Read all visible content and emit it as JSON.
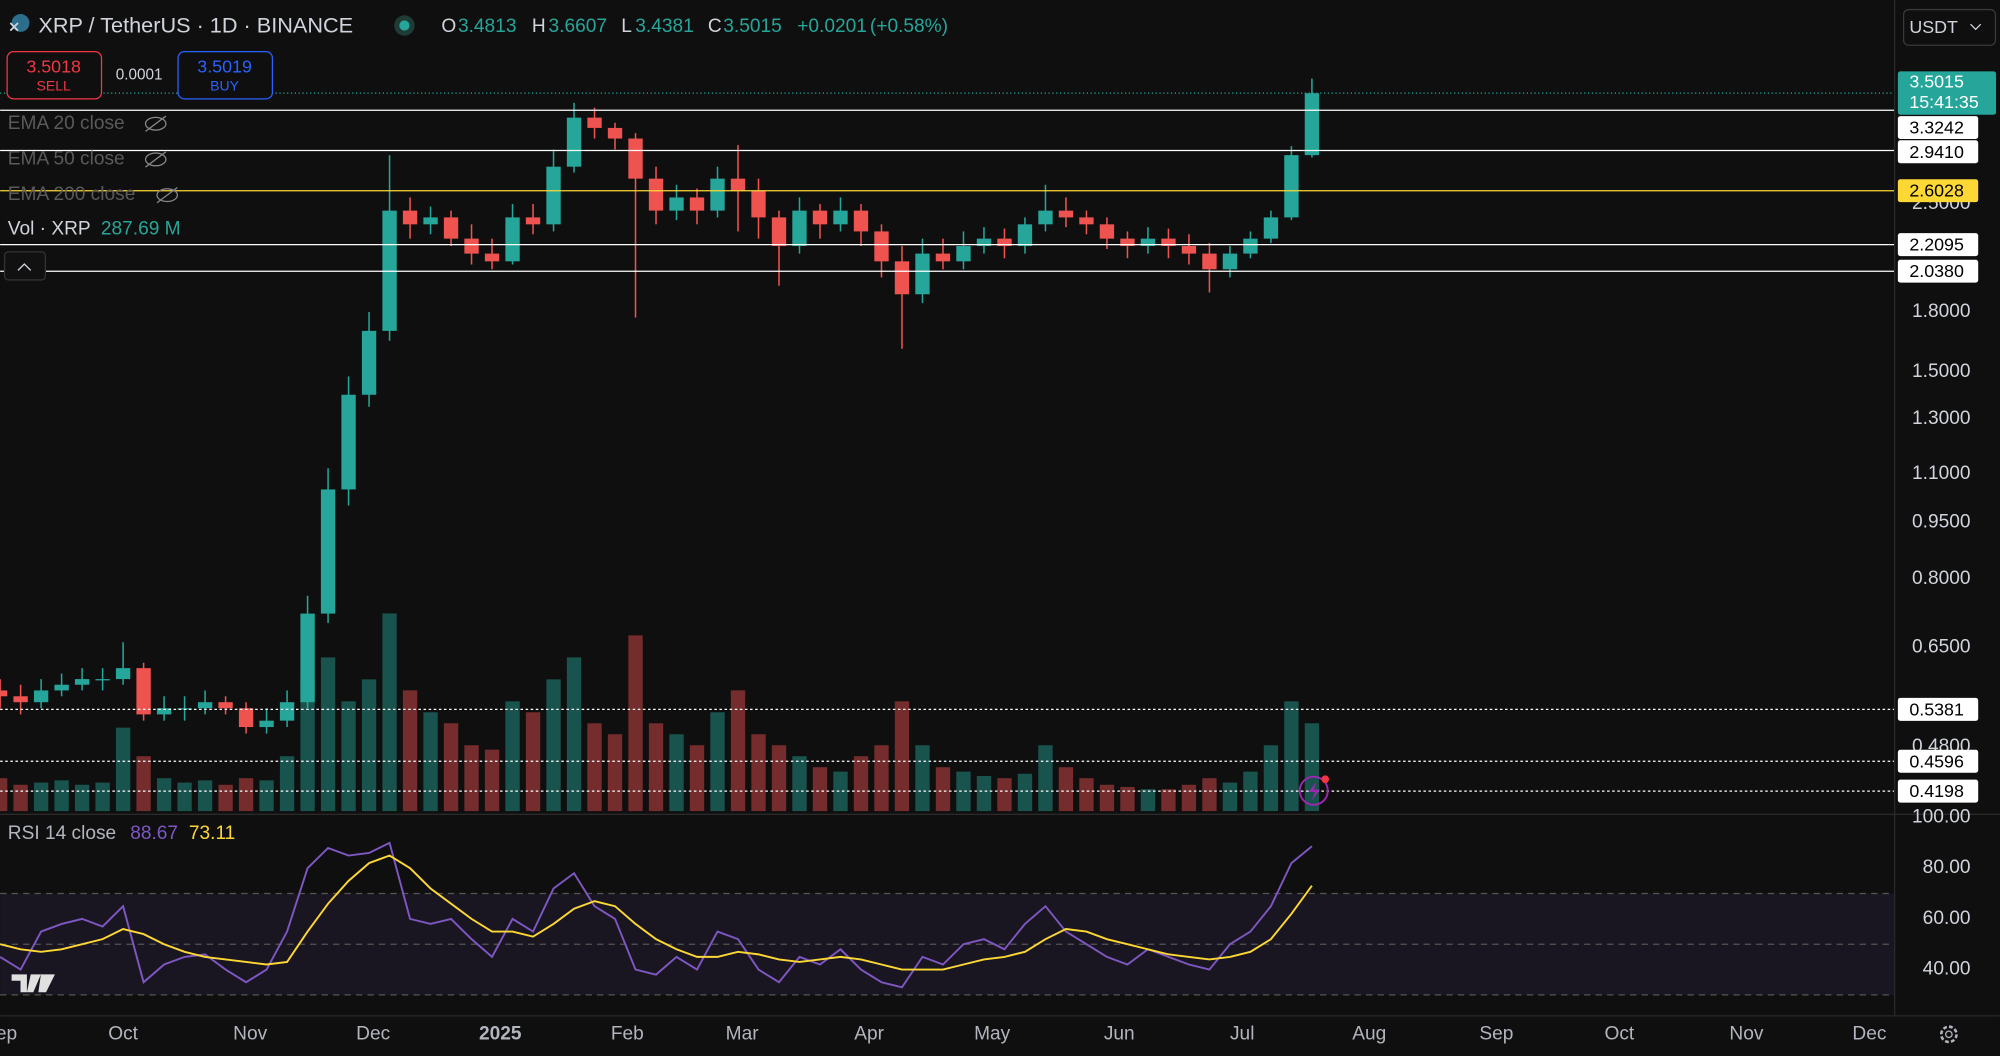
{
  "header": {
    "symbol": "XRP / TetherUS · 1D · BINANCE",
    "open_label": "O",
    "open": 3.4813,
    "high_label": "H",
    "high": 3.6607,
    "low_label": "L",
    "low": 3.4381,
    "close_label": "C",
    "close": 3.5015,
    "change": "+0.0201",
    "change_pct": "(+0.58%)",
    "currency": "USDT"
  },
  "trade": {
    "sell_price": 3.5018,
    "sell_label": "SELL",
    "spread": 0.0001,
    "buy_price": 3.5019,
    "buy_label": "BUY"
  },
  "indicators": [
    "EMA 20 close",
    "EMA 50 close",
    "EMA 200 close"
  ],
  "volume_legend": {
    "label": "Vol · XRP",
    "value": "287.69 M"
  },
  "rsi_legend": {
    "label": "RSI 14 close",
    "rsi": 88.67,
    "ma": 73.11
  },
  "chart_data": [
    {
      "type": "candlestick",
      "log_scale": true,
      "grid": true,
      "up_color": "#26a69a",
      "down_color": "#ef5350",
      "x": [
        0,
        5,
        10,
        15,
        20,
        25,
        30,
        35,
        40,
        45,
        50,
        55,
        60,
        65,
        70,
        75,
        80,
        85,
        90,
        95,
        100,
        105,
        110,
        115,
        120,
        125,
        130,
        135,
        140,
        145,
        150,
        155,
        160,
        165,
        170,
        175,
        180,
        185,
        190,
        195,
        200,
        205,
        210,
        215,
        220,
        225,
        230,
        235,
        240,
        245,
        250,
        255,
        260,
        265,
        270,
        275,
        280,
        285,
        290,
        295,
        300,
        305,
        310,
        315,
        320
      ],
      "open": [
        0.57,
        0.56,
        0.55,
        0.57,
        0.58,
        0.59,
        0.59,
        0.61,
        0.53,
        0.54,
        0.54,
        0.55,
        0.54,
        0.51,
        0.52,
        0.55,
        0.72,
        1.05,
        1.4,
        1.7,
        2.45,
        2.35,
        2.4,
        2.25,
        2.15,
        2.1,
        2.4,
        2.35,
        2.8,
        3.25,
        3.15,
        3.05,
        2.7,
        2.45,
        2.55,
        2.45,
        2.7,
        2.6,
        2.4,
        2.2,
        2.45,
        2.35,
        2.45,
        2.3,
        2.1,
        1.9,
        2.15,
        2.1,
        2.2,
        2.25,
        2.2,
        2.35,
        2.45,
        2.4,
        2.35,
        2.25,
        2.2,
        2.25,
        2.2,
        2.15,
        2.05,
        2.15,
        2.25,
        2.4,
        2.9
      ],
      "high": [
        0.59,
        0.58,
        0.59,
        0.6,
        0.61,
        0.61,
        0.66,
        0.62,
        0.56,
        0.56,
        0.57,
        0.56,
        0.55,
        0.54,
        0.57,
        0.76,
        1.12,
        1.48,
        1.8,
        2.9,
        2.55,
        2.48,
        2.45,
        2.35,
        2.25,
        2.5,
        2.5,
        2.95,
        3.4,
        3.35,
        3.2,
        3.1,
        2.8,
        2.65,
        2.62,
        2.8,
        2.99,
        2.7,
        2.45,
        2.55,
        2.5,
        2.55,
        2.5,
        2.35,
        2.2,
        2.25,
        2.25,
        2.3,
        2.33,
        2.32,
        2.4,
        2.65,
        2.55,
        2.45,
        2.4,
        2.3,
        2.33,
        2.32,
        2.28,
        2.22,
        2.2,
        2.3,
        2.45,
        2.98,
        3.66
      ],
      "low": [
        0.54,
        0.53,
        0.54,
        0.56,
        0.57,
        0.57,
        0.58,
        0.52,
        0.52,
        0.52,
        0.53,
        0.53,
        0.5,
        0.5,
        0.51,
        0.54,
        0.7,
        1.0,
        1.35,
        1.65,
        2.25,
        2.28,
        2.2,
        2.08,
        2.05,
        2.08,
        2.28,
        2.3,
        2.75,
        3.05,
        2.95,
        1.77,
        2.35,
        2.38,
        2.35,
        2.4,
        2.3,
        2.25,
        1.95,
        2.15,
        2.25,
        2.3,
        2.2,
        2.0,
        1.61,
        1.85,
        2.05,
        2.05,
        2.15,
        2.12,
        2.15,
        2.3,
        2.33,
        2.28,
        2.18,
        2.12,
        2.15,
        2.12,
        2.08,
        1.91,
        2.0,
        2.12,
        2.22,
        2.38,
        2.88
      ],
      "close": [
        0.56,
        0.55,
        0.57,
        0.58,
        0.59,
        0.59,
        0.61,
        0.53,
        0.54,
        0.54,
        0.55,
        0.54,
        0.51,
        0.52,
        0.55,
        0.72,
        1.05,
        1.4,
        1.7,
        2.45,
        2.35,
        2.4,
        2.25,
        2.15,
        2.1,
        2.4,
        2.35,
        2.8,
        3.25,
        3.15,
        3.05,
        2.7,
        2.45,
        2.55,
        2.45,
        2.7,
        2.6,
        2.4,
        2.2,
        2.45,
        2.35,
        2.45,
        2.3,
        2.1,
        1.9,
        2.15,
        2.1,
        2.2,
        2.25,
        2.2,
        2.35,
        2.45,
        2.4,
        2.35,
        2.25,
        2.2,
        2.25,
        2.2,
        2.15,
        2.05,
        2.15,
        2.25,
        2.4,
        2.9,
        3.5
      ],
      "volume": [
        150,
        120,
        130,
        140,
        120,
        130,
        380,
        250,
        150,
        130,
        140,
        120,
        150,
        140,
        250,
        600,
        700,
        500,
        600,
        900,
        550,
        450,
        400,
        300,
        280,
        500,
        450,
        600,
        700,
        400,
        350,
        800,
        400,
        350,
        300,
        450,
        550,
        350,
        300,
        250,
        200,
        180,
        250,
        300,
        500,
        300,
        200,
        180,
        160,
        150,
        170,
        300,
        200,
        150,
        120,
        110,
        100,
        100,
        120,
        150,
        130,
        180,
        300,
        500,
        400
      ],
      "xlim": [
        0,
        462
      ],
      "xticks": [
        {
          "value": 0,
          "label": "Sep"
        },
        {
          "value": 30,
          "label": "Oct"
        },
        {
          "value": 61,
          "label": "Nov"
        },
        {
          "value": 91,
          "label": "Dec"
        },
        {
          "value": 122,
          "label": "2025"
        },
        {
          "value": 153,
          "label": "Feb"
        },
        {
          "value": 181,
          "label": "Mar"
        },
        {
          "value": 212,
          "label": "Apr"
        },
        {
          "value": 242,
          "label": "May"
        },
        {
          "value": 273,
          "label": "Jun"
        },
        {
          "value": 303,
          "label": "Jul"
        },
        {
          "value": 334,
          "label": "Aug"
        },
        {
          "value": 365,
          "label": "Sep"
        },
        {
          "value": 395,
          "label": "Oct"
        },
        {
          "value": 426,
          "label": "Nov"
        },
        {
          "value": 456,
          "label": "Dec"
        }
      ],
      "ylim": [
        0.395,
        4.47
      ],
      "yticks": [
        {
          "value": 0.48,
          "label": "0.4800"
        },
        {
          "value": 0.65,
          "label": "0.6500"
        },
        {
          "value": 0.8,
          "label": "0.8000"
        },
        {
          "value": 0.95,
          "label": "0.9500"
        },
        {
          "value": 1.1,
          "label": "1.1000"
        },
        {
          "value": 1.3,
          "label": "1.3000"
        },
        {
          "value": 1.5,
          "label": "1.5000"
        },
        {
          "value": 1.8,
          "label": "1.8000"
        },
        {
          "value": 2.5,
          "label": "2.5000"
        }
      ],
      "last_price": {
        "value": 3.5015,
        "countdown": "15:41:35",
        "color": "#26a69a"
      },
      "price_lines": [
        {
          "value": 3.3242,
          "color": "#ffffff",
          "style": "solid"
        },
        {
          "value": 2.941,
          "label": "2.9410",
          "color": "#ffffff",
          "style": "solid"
        },
        {
          "value": 2.6028,
          "color": "#fdd835",
          "style": "solid"
        },
        {
          "value": 2.2095,
          "color": "#ffffff",
          "style": "solid"
        },
        {
          "value": 2.038,
          "label": "2.0380",
          "color": "#ffffff",
          "style": "solid"
        },
        {
          "value": 0.5381,
          "color": "#ffffff",
          "style": "dotted"
        },
        {
          "value": 0.4596,
          "color": "#ffffff",
          "style": "dotted"
        },
        {
          "value": 0.4198,
          "color": "#ffffff",
          "style": "dotted"
        }
      ]
    },
    {
      "type": "line",
      "x": [
        0,
        5,
        10,
        15,
        20,
        25,
        30,
        35,
        40,
        45,
        50,
        55,
        60,
        65,
        70,
        75,
        80,
        85,
        90,
        95,
        100,
        105,
        110,
        115,
        120,
        125,
        130,
        135,
        140,
        145,
        150,
        155,
        160,
        165,
        170,
        175,
        180,
        185,
        190,
        195,
        200,
        205,
        210,
        215,
        220,
        225,
        230,
        235,
        240,
        245,
        250,
        255,
        260,
        265,
        270,
        275,
        280,
        285,
        290,
        295,
        300,
        305,
        310,
        315,
        320
      ],
      "xlim": [
        0,
        462
      ],
      "ylim": [
        22,
        100
      ],
      "yticks": [
        {
          "value": 40,
          "label": "40.00"
        },
        {
          "value": 60,
          "label": "60.00"
        },
        {
          "value": 80,
          "label": "80.00"
        },
        {
          "value": 100,
          "label": "100.00"
        }
      ],
      "bands": [
        30,
        50,
        70
      ],
      "band_color": "#7e57c2",
      "series": [
        {
          "color": "#7e57c2",
          "values": [
            45,
            40,
            55,
            58,
            60,
            57,
            65,
            35,
            42,
            45,
            46,
            40,
            35,
            40,
            55,
            80,
            88,
            85,
            86,
            90,
            60,
            58,
            60,
            52,
            45,
            60,
            55,
            72,
            78,
            65,
            60,
            40,
            38,
            45,
            40,
            55,
            52,
            40,
            35,
            45,
            42,
            48,
            40,
            35,
            33,
            45,
            42,
            50,
            52,
            48,
            58,
            65,
            55,
            50,
            45,
            42,
            48,
            45,
            42,
            40,
            50,
            55,
            65,
            82,
            88.67
          ]
        },
        {
          "color": "#fdd835",
          "values": [
            50,
            48,
            47,
            48,
            50,
            52,
            56,
            54,
            50,
            47,
            45,
            44,
            43,
            42,
            43,
            55,
            66,
            75,
            82,
            85,
            80,
            72,
            66,
            60,
            55,
            55,
            53,
            58,
            64,
            67,
            65,
            58,
            52,
            48,
            45,
            45,
            47,
            46,
            44,
            43,
            44,
            45,
            44,
            42,
            40,
            40,
            40,
            42,
            44,
            45,
            47,
            52,
            56,
            55,
            52,
            50,
            48,
            46,
            45,
            44,
            45,
            47,
            52,
            62,
            73.11
          ]
        }
      ]
    }
  ]
}
